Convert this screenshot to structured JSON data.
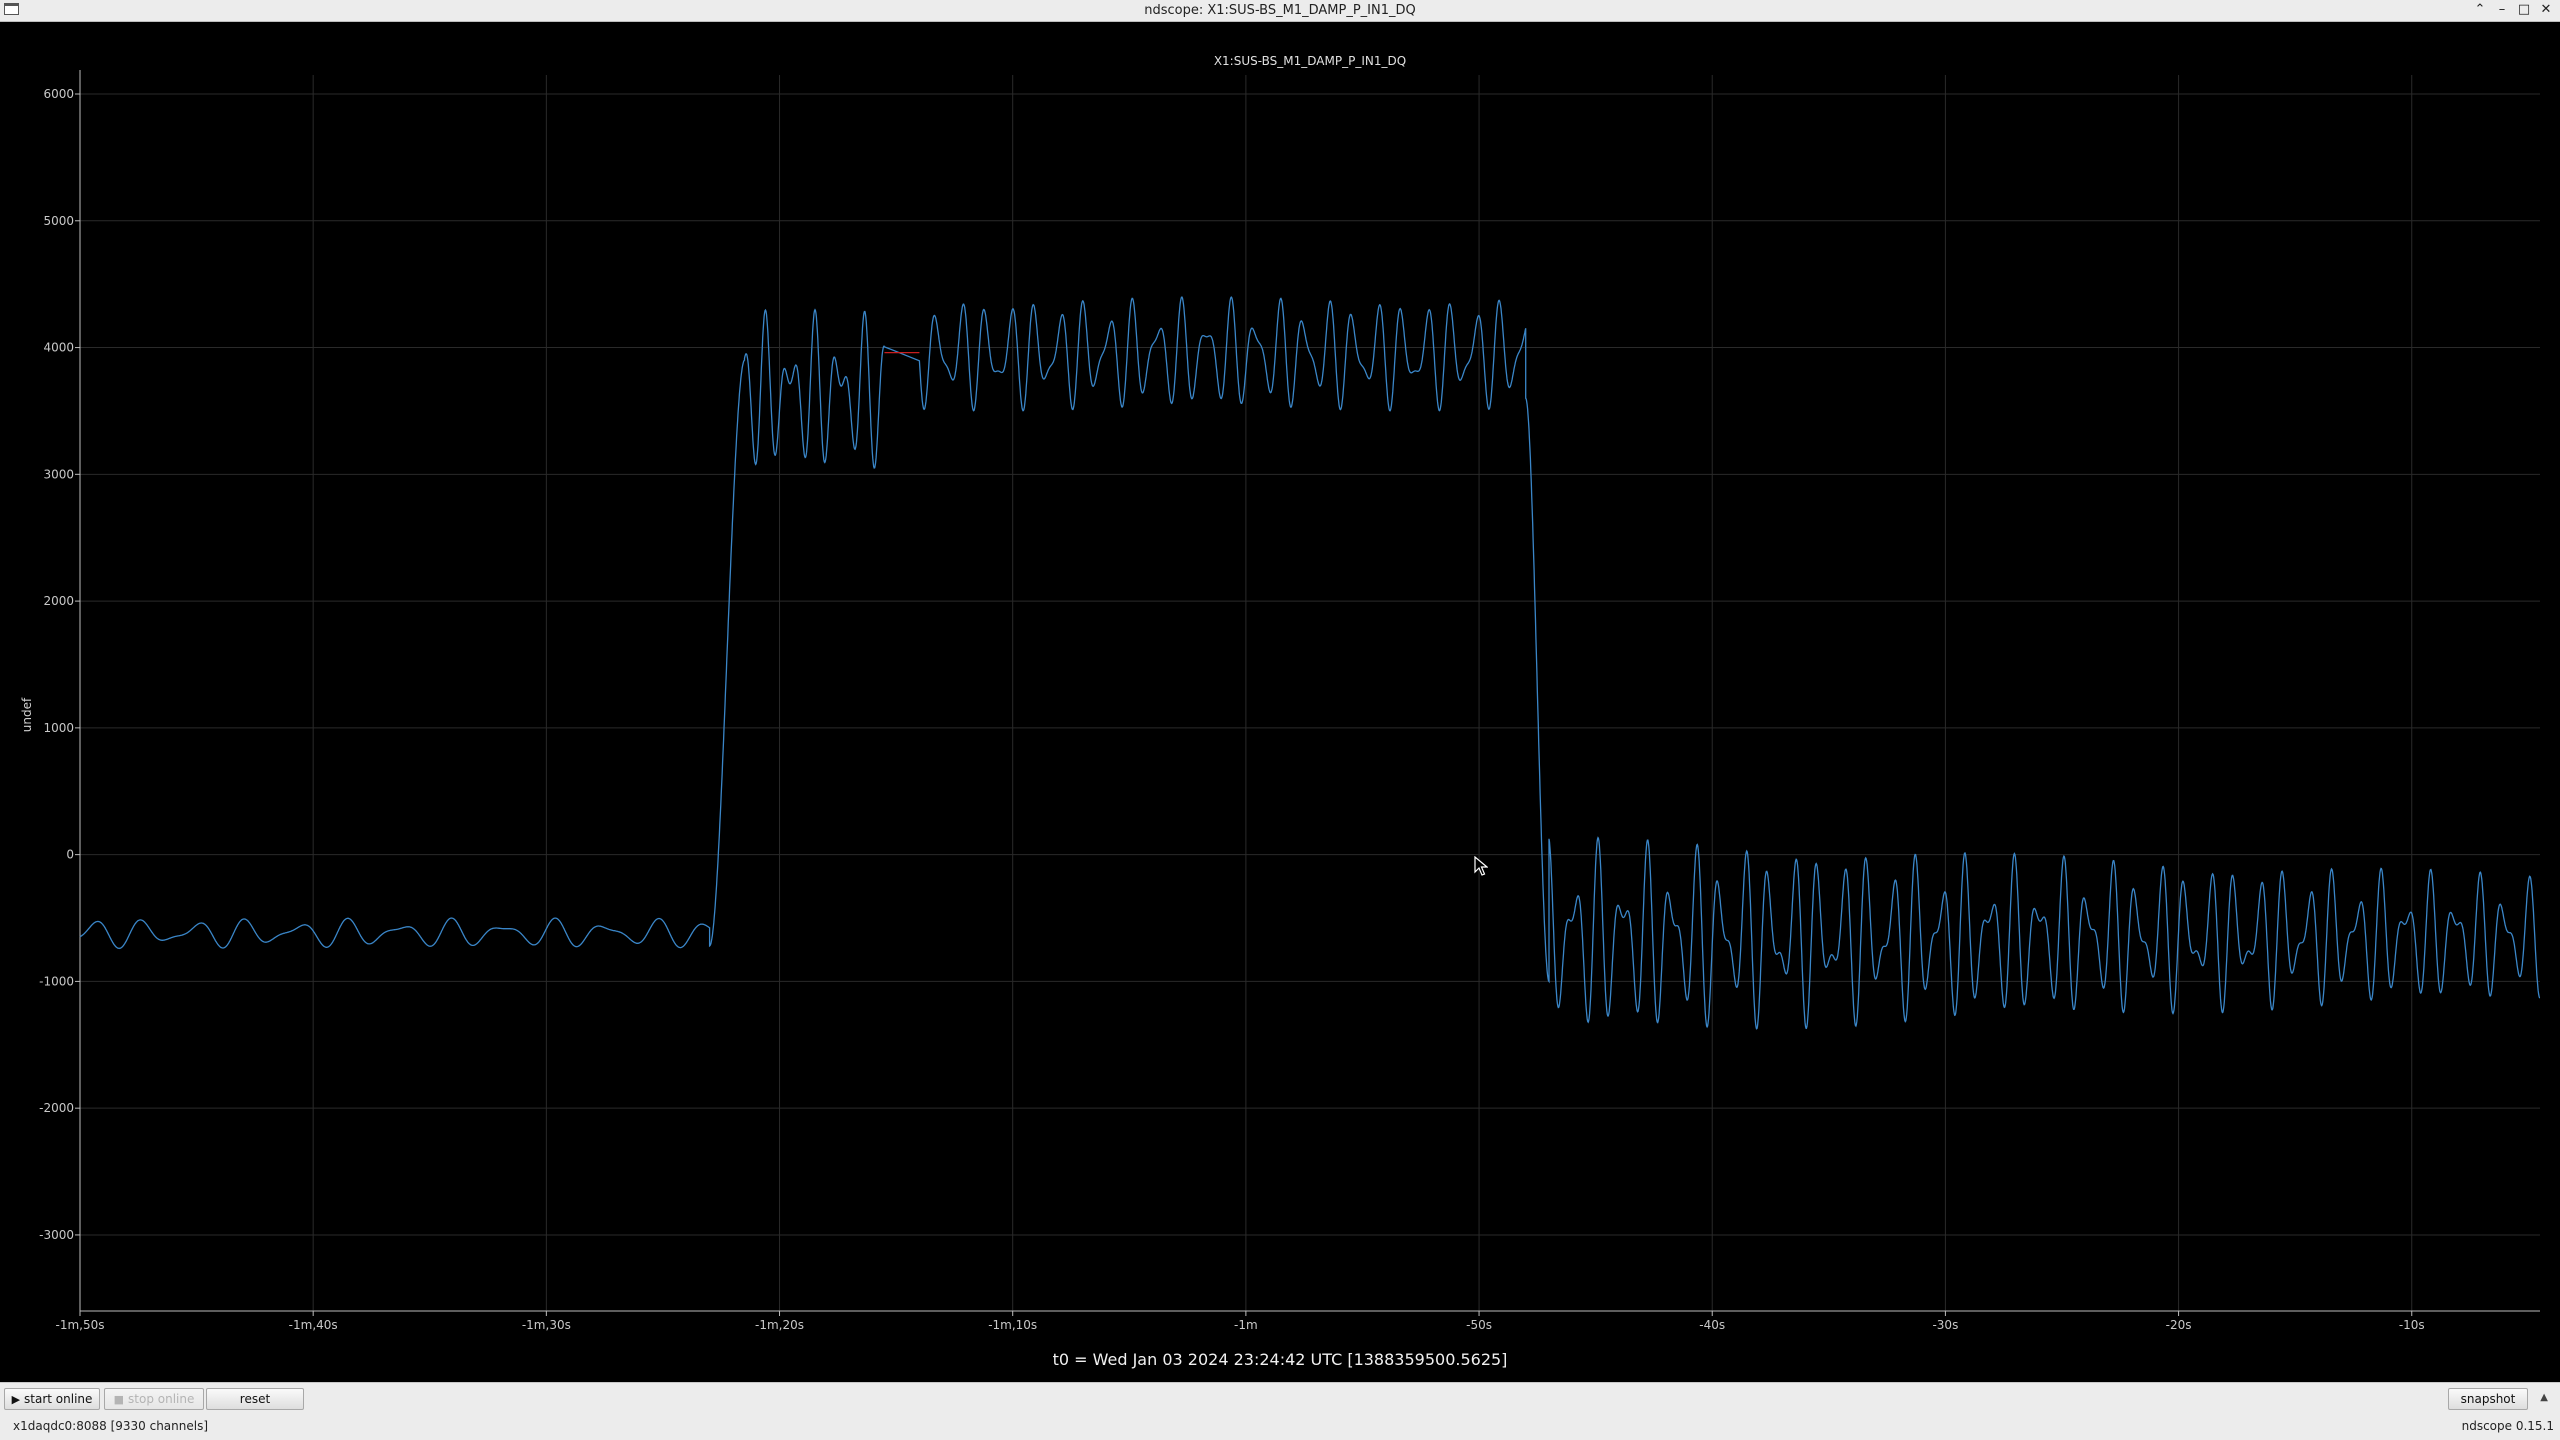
{
  "window": {
    "title": "ndscope: X1:SUS-BS_M1_DAMP_P_IN1_DQ",
    "controls": {
      "up": "⌃",
      "minimize": "–",
      "maximize": "□",
      "close": "✕"
    }
  },
  "plot": {
    "channel_title": "X1:SUS-BS_M1_DAMP_P_IN1_DQ",
    "y_axis_label": "undef",
    "t0_label": "t0 = Wed Jan 03 2024 23:24:42 UTC [1388359500.5625]",
    "trace_color": "#3a86c8",
    "grid_color": "#2a2a2a",
    "axis_color": "#bdbdbd"
  },
  "chart_data": {
    "type": "line",
    "title": "X1:SUS-BS_M1_DAMP_P_IN1_DQ",
    "xlabel": "",
    "ylabel": "undef",
    "xlim": [
      -110,
      -4.5
    ],
    "ylim": [
      -3600,
      6150
    ],
    "x_unit": "seconds relative to t0",
    "x_ticks": [
      {
        "value": -110,
        "label": "-1m,50s"
      },
      {
        "value": -100,
        "label": "-1m,40s"
      },
      {
        "value": -90,
        "label": "-1m,30s"
      },
      {
        "value": -80,
        "label": "-1m,20s"
      },
      {
        "value": -70,
        "label": "-1m,10s"
      },
      {
        "value": -60,
        "label": "-1m"
      },
      {
        "value": -50,
        "label": "-50s"
      },
      {
        "value": -40,
        "label": "-40s"
      },
      {
        "value": -30,
        "label": "-30s"
      },
      {
        "value": -20,
        "label": "-20s"
      },
      {
        "value": -10,
        "label": "-10s"
      }
    ],
    "y_ticks": [
      6000,
      5000,
      4000,
      3000,
      2000,
      1000,
      0,
      -1000,
      -2000,
      -3000
    ],
    "grid": true,
    "series": [
      {
        "color": "#3a86c8",
        "segments": [
          {
            "start": -110.0,
            "end": -83.0,
            "base": -620,
            "amplitude": 120,
            "period": 2.2,
            "mod": 0.35
          },
          {
            "start": -83.0,
            "end": -81.5,
            "ramp_from": -720,
            "ramp_to": 3900
          },
          {
            "start": -81.5,
            "end": -75.5,
            "base": 3650,
            "amplitude": 650,
            "period": 1.05,
            "mod": 0.45
          },
          {
            "start": -74.0,
            "end": -48.0,
            "base": 3950,
            "amplitude": 450,
            "period": 1.05,
            "mod": 0.35
          },
          {
            "start": -48.0,
            "end": -47.0,
            "ramp_from": 3600,
            "ramp_to": -1000
          },
          {
            "start": -47.0,
            "end": -4.5,
            "base": -650,
            "amplitude": 800,
            "amp_end": 500,
            "period": 1.05,
            "mod": 0.4
          }
        ],
        "gap": {
          "start": -75.5,
          "end": -74.0,
          "value": 3960,
          "color": "#c81e1e"
        }
      }
    ]
  },
  "controls": {
    "start_online": "start online",
    "stop_online": "stop online",
    "reset": "reset",
    "snapshot": "snapshot"
  },
  "status": {
    "server": "x1daqdc0:8088  [9330 channels]",
    "version": "ndscope 0.15.1"
  }
}
